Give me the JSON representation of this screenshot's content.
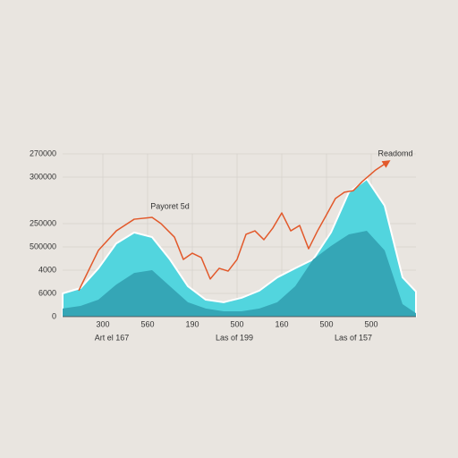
{
  "chart_data": {
    "type": "area",
    "annotations": [
      "Payoret 5d",
      "Readomd"
    ],
    "group_labels": [
      "Art el 167",
      "Las of 199",
      "Las of 157"
    ],
    "xlim": [
      0,
      79
    ],
    "xticks": [
      {
        "value": 9,
        "label": "300"
      },
      {
        "value": 19,
        "label": "560"
      },
      {
        "value": 29,
        "label": "190"
      },
      {
        "value": 39,
        "label": "500"
      },
      {
        "value": 49,
        "label": "160"
      },
      {
        "value": 59,
        "label": "500"
      },
      {
        "value": 69,
        "label": "500"
      }
    ],
    "ylim": [
      0,
      7
    ],
    "yticks": [
      0,
      {
        "value": 1,
        "label": "6000"
      },
      {
        "value": 2,
        "label": "4000"
      },
      {
        "value": 3,
        "label": "500000"
      },
      {
        "value": 4,
        "label": "250000"
      },
      {
        "value": 6,
        "label": "300000"
      },
      {
        "value": 7,
        "label": "270000"
      }
    ],
    "grid": true,
    "series": [
      {
        "kind": "area",
        "color": "#52d5de",
        "x": [
          0,
          4,
          8,
          12,
          16,
          20,
          24,
          28,
          32,
          36,
          40,
          44,
          48,
          52,
          56,
          60,
          64,
          68,
          72,
          76,
          79
        ],
        "values": [
          1.0,
          1.23,
          2.08,
          3.15,
          3.62,
          3.42,
          2.46,
          1.31,
          0.73,
          0.62,
          0.81,
          1.12,
          1.69,
          2.08,
          2.46,
          3.62,
          5.35,
          5.92,
          4.77,
          1.69,
          1.08
        ]
      },
      {
        "kind": "area",
        "color": "#35a6b6",
        "x": [
          0,
          4,
          8,
          12,
          16,
          20,
          24,
          28,
          32,
          36,
          40,
          44,
          48,
          52,
          56,
          60,
          64,
          68,
          72,
          76,
          79
        ],
        "values": [
          0.35,
          0.46,
          0.73,
          1.38,
          1.88,
          2.0,
          1.31,
          0.62,
          0.35,
          0.23,
          0.23,
          0.35,
          0.62,
          1.31,
          2.46,
          3.04,
          3.54,
          3.69,
          2.85,
          0.54,
          0.15
        ]
      },
      {
        "kind": "line",
        "color": "#e2592b",
        "x": [
          3.6,
          8,
          12,
          16,
          20,
          22,
          25,
          27,
          29,
          31,
          33,
          35,
          37,
          39,
          41,
          43,
          45,
          47,
          49,
          51,
          53,
          55,
          57,
          59,
          61,
          63,
          65,
          67,
          70,
          73
        ],
        "values": [
          1.12,
          2.85,
          3.69,
          4.19,
          4.27,
          4.0,
          3.42,
          2.46,
          2.73,
          2.54,
          1.62,
          2.08,
          1.96,
          2.46,
          3.54,
          3.69,
          3.31,
          3.81,
          4.46,
          3.69,
          3.92,
          2.92,
          3.69,
          4.38,
          5.08,
          5.35,
          5.42,
          5.81,
          6.31,
          6.69
        ]
      }
    ]
  }
}
